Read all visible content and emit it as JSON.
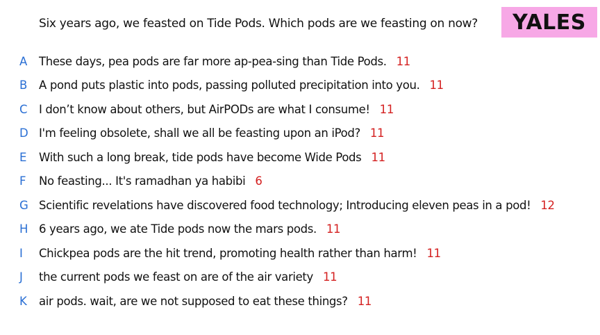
{
  "question": "Six years ago, we feasted on Tide Pods. Which pods are we feasting on now?",
  "badge": "YALES",
  "colors": {
    "letter": "#2a6fd4",
    "score": "#d42020",
    "badge_bg": "#f7a8e6"
  },
  "answers": [
    {
      "letter": "A",
      "text": "These days, pea pods are far more ap-pea-sing than Tide Pods.",
      "score": "11"
    },
    {
      "letter": "B",
      "text": "A pond puts plastic into pods, passing polluted precipitation into you.",
      "score": "11"
    },
    {
      "letter": "C",
      "text": "I don’t know about others, but AirPODs are what I consume!",
      "score": "11"
    },
    {
      "letter": "D",
      "text": "I'm feeling obsolete, shall we all be feasting upon an iPod?",
      "score": "11"
    },
    {
      "letter": "E",
      "text": "With such a long break, tide pods have become Wide Pods",
      "score": "11"
    },
    {
      "letter": "F",
      "text": "No feasting... It's ramadhan ya habibi",
      "score": "6"
    },
    {
      "letter": "G",
      "text": "Scientific revelations have discovered food technology; Introducing eleven peas in a pod!",
      "score": "12"
    },
    {
      "letter": "H",
      "text": "6 years ago, we ate Tide pods now the mars pods.",
      "score": "11"
    },
    {
      "letter": "I",
      "text": "Chickpea pods are the hit trend, promoting health rather than harm!",
      "score": "11"
    },
    {
      "letter": "J",
      "text": "the current pods we feast on are of the air variety",
      "score": "11"
    },
    {
      "letter": "K",
      "text": "air pods. wait, are we not supposed to eat these things?",
      "score": "11"
    }
  ]
}
